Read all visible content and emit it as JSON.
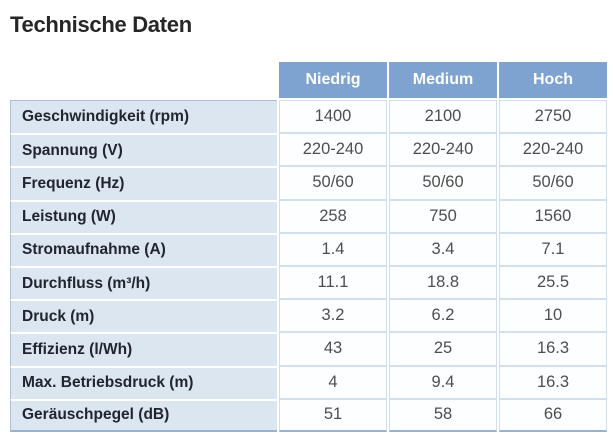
{
  "title": "Technische Daten",
  "colors": {
    "header_bg": "#7ea3d1",
    "header_text": "#ffffff",
    "label_bg": "#dbe6f1",
    "label_text": "#22252d",
    "value_text": "#4e4e4e",
    "cell_border": "#d2e0ee",
    "outer_border": "#96b2d4"
  },
  "table": {
    "columns": [
      "Niedrig",
      "Medium",
      "Hoch"
    ],
    "rows": [
      {
        "label": "Geschwindigkeit (rpm)",
        "values": [
          "1400",
          "2100",
          "2750"
        ]
      },
      {
        "label": "Spannung (V)",
        "values": [
          "220-240",
          "220-240",
          "220-240"
        ]
      },
      {
        "label": "Frequenz (Hz)",
        "values": [
          "50/60",
          "50/60",
          "50/60"
        ]
      },
      {
        "label": "Leistung (W)",
        "values": [
          "258",
          "750",
          "1560"
        ]
      },
      {
        "label": "Stromaufnahme (A)",
        "values": [
          "1.4",
          "3.4",
          "7.1"
        ]
      },
      {
        "label": "Durchfluss (m³/h)",
        "values": [
          "11.1",
          "18.8",
          "25.5"
        ]
      },
      {
        "label": "Druck (m)",
        "values": [
          "3.2",
          "6.2",
          "10"
        ]
      },
      {
        "label": "Effizienz (l/Wh)",
        "values": [
          "43",
          "25",
          "16.3"
        ]
      },
      {
        "label": "Max. Betriebsdruck (m)",
        "values": [
          "4",
          "9.4",
          "16.3"
        ]
      },
      {
        "label": "Geräuschpegel (dB)",
        "values": [
          "51",
          "58",
          "66"
        ]
      }
    ]
  }
}
